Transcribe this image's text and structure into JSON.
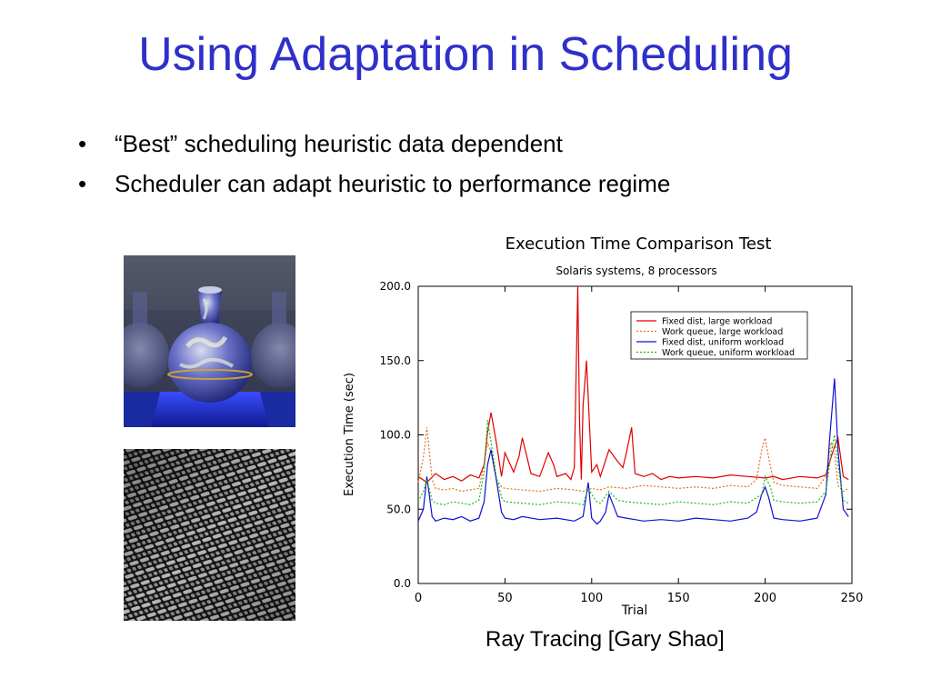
{
  "slide": {
    "title": "Using Adaptation in Scheduling",
    "bullets": [
      "“Best” scheduling heuristic data dependent",
      "Scheduler can adapt heuristic to performance regime"
    ],
    "caption": "Ray Tracing [Gary Shao]"
  },
  "colors": {
    "title": "#2f2fc9",
    "series_fixed_large": "#e00000",
    "series_queue_large": "#e07020",
    "series_fixed_uniform": "#1010d0",
    "series_queue_uniform": "#10c010"
  },
  "chart_data": {
    "type": "line",
    "title": "Execution Time Comparison Test",
    "subtitle": "Solaris systems, 8 processors",
    "xlabel": "Trial",
    "ylabel": "Execution Time (sec)",
    "xlim": [
      0,
      250
    ],
    "ylim": [
      0,
      200
    ],
    "x_ticks": [
      "0",
      "50",
      "100",
      "150",
      "200",
      "250"
    ],
    "y_ticks": [
      "0.0",
      "50.0",
      "100.0",
      "150.0",
      "200.0"
    ],
    "legend_position": "top-right",
    "grid": false,
    "series": [
      {
        "name": "Fixed dist, large workload",
        "color": "#e00000",
        "style": "solid",
        "x": [
          0,
          5,
          10,
          15,
          20,
          25,
          30,
          35,
          38,
          40,
          42,
          45,
          48,
          50,
          55,
          58,
          60,
          65,
          70,
          75,
          78,
          80,
          85,
          88,
          90,
          92,
          93,
          94,
          95,
          97,
          100,
          103,
          105,
          110,
          115,
          118,
          120,
          123,
          125,
          130,
          135,
          140,
          145,
          150,
          160,
          170,
          180,
          190,
          200,
          205,
          210,
          220,
          230,
          235,
          238,
          240,
          242,
          245,
          248
        ],
        "y": [
          72,
          68,
          74,
          70,
          72,
          69,
          73,
          71,
          80,
          102,
          115,
          95,
          72,
          88,
          75,
          85,
          98,
          74,
          72,
          88,
          80,
          72,
          74,
          70,
          78,
          200,
          110,
          70,
          120,
          150,
          75,
          80,
          72,
          90,
          82,
          78,
          88,
          105,
          74,
          72,
          74,
          70,
          72,
          71,
          72,
          71,
          73,
          72,
          71,
          72,
          70,
          72,
          71,
          73,
          85,
          92,
          98,
          72,
          70
        ]
      },
      {
        "name": "Work queue, large workload",
        "color": "#e07020",
        "style": "dotted",
        "x": [
          0,
          3,
          5,
          8,
          10,
          15,
          20,
          25,
          30,
          35,
          38,
          40,
          42,
          45,
          48,
          50,
          60,
          70,
          80,
          90,
          95,
          100,
          105,
          110,
          120,
          130,
          140,
          150,
          160,
          170,
          180,
          190,
          195,
          198,
          200,
          202,
          205,
          210,
          220,
          230,
          235,
          238,
          240,
          242,
          245,
          248
        ],
        "y": [
          68,
          85,
          105,
          70,
          64,
          63,
          64,
          62,
          63,
          64,
          80,
          95,
          88,
          70,
          65,
          64,
          63,
          62,
          64,
          63,
          62,
          64,
          63,
          65,
          64,
          66,
          65,
          64,
          65,
          64,
          66,
          65,
          70,
          90,
          98,
          85,
          68,
          66,
          65,
          64,
          72,
          95,
          88,
          66,
          62,
          64
        ]
      },
      {
        "name": "Fixed dist, uniform workload",
        "color": "#1010d0",
        "style": "solid",
        "x": [
          0,
          3,
          5,
          8,
          10,
          15,
          20,
          25,
          30,
          35,
          38,
          40,
          42,
          45,
          48,
          50,
          55,
          60,
          70,
          80,
          90,
          95,
          98,
          100,
          103,
          105,
          108,
          110,
          115,
          120,
          125,
          130,
          140,
          150,
          160,
          170,
          180,
          190,
          195,
          198,
          200,
          202,
          205,
          210,
          220,
          230,
          235,
          237,
          240,
          242,
          245,
          248
        ],
        "y": [
          42,
          50,
          72,
          45,
          42,
          44,
          43,
          45,
          42,
          44,
          55,
          80,
          90,
          70,
          48,
          44,
          43,
          45,
          43,
          44,
          42,
          45,
          68,
          44,
          40,
          42,
          48,
          60,
          45,
          44,
          43,
          42,
          43,
          42,
          44,
          43,
          42,
          44,
          48,
          60,
          65,
          58,
          44,
          43,
          42,
          44,
          60,
          95,
          138,
          90,
          50,
          45
        ]
      },
      {
        "name": "Work queue, uniform workload",
        "color": "#10c010",
        "style": "dotted",
        "x": [
          0,
          3,
          5,
          8,
          10,
          15,
          20,
          25,
          30,
          35,
          38,
          40,
          42,
          45,
          48,
          50,
          60,
          70,
          80,
          90,
          95,
          98,
          100,
          103,
          105,
          110,
          115,
          120,
          130,
          140,
          150,
          160,
          170,
          180,
          190,
          198,
          200,
          203,
          205,
          210,
          220,
          230,
          235,
          238,
          240,
          242,
          245,
          248
        ],
        "y": [
          55,
          62,
          70,
          56,
          54,
          53,
          55,
          54,
          53,
          56,
          75,
          110,
          95,
          72,
          58,
          55,
          54,
          53,
          55,
          54,
          53,
          64,
          60,
          55,
          54,
          62,
          56,
          55,
          54,
          53,
          55,
          54,
          53,
          55,
          54,
          60,
          72,
          65,
          56,
          55,
          54,
          55,
          62,
          88,
          100,
          80,
          56,
          54
        ]
      }
    ]
  }
}
